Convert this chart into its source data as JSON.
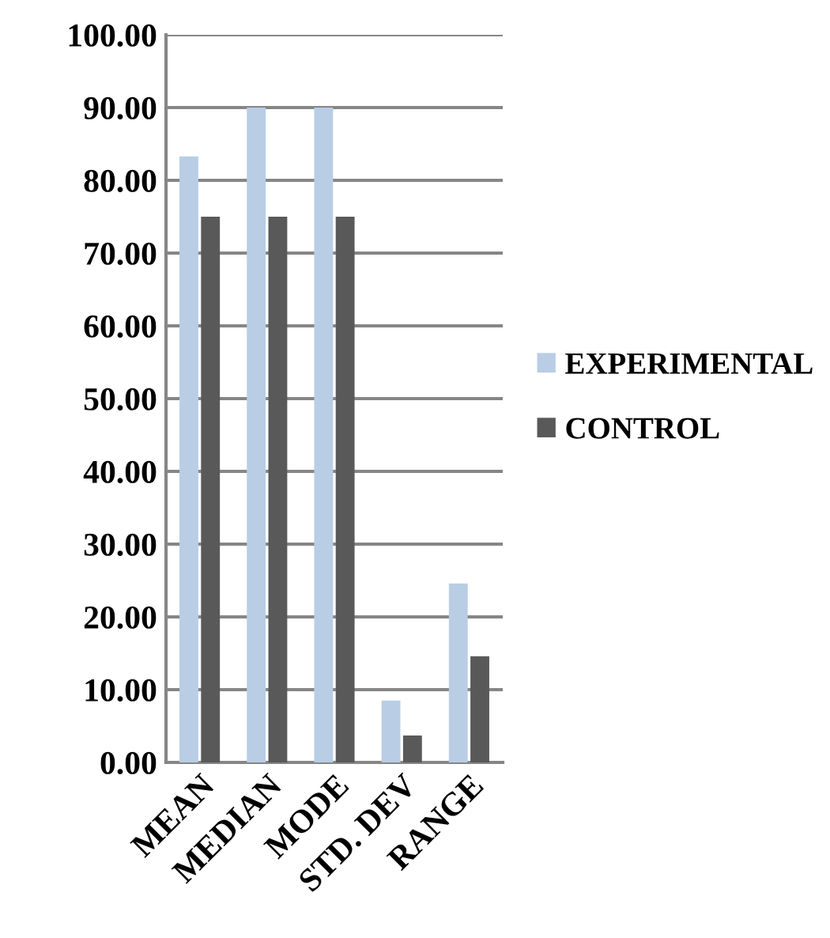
{
  "chart_data": {
    "type": "bar",
    "categories": [
      "MEAN",
      "MEDIAN",
      "MODE",
      "STD. DEV",
      "RANGE"
    ],
    "series": [
      {
        "name": "EXPERIMENTAL",
        "color": "#b9cde5",
        "values": [
          83.3,
          90,
          90,
          8.5,
          24.6
        ]
      },
      {
        "name": "CONTROL",
        "color": "#595959",
        "values": [
          75,
          75,
          75,
          3.7,
          14.6
        ]
      }
    ],
    "ylim": [
      0,
      100
    ],
    "yticks": [
      {
        "value": 0,
        "label": "0.00"
      },
      {
        "value": 10,
        "label": "10.00"
      },
      {
        "value": 20,
        "label": "20.00"
      },
      {
        "value": 30,
        "label": "30.00"
      },
      {
        "value": 40,
        "label": "40.00"
      },
      {
        "value": 50,
        "label": "50.00"
      },
      {
        "value": 60,
        "label": "60.00"
      },
      {
        "value": 70,
        "label": "70.00"
      },
      {
        "value": 80,
        "label": "80.00"
      },
      {
        "value": 90,
        "label": "90.00"
      },
      {
        "value": 100,
        "label": "100.00"
      }
    ],
    "grid": "y",
    "legend": "right"
  }
}
